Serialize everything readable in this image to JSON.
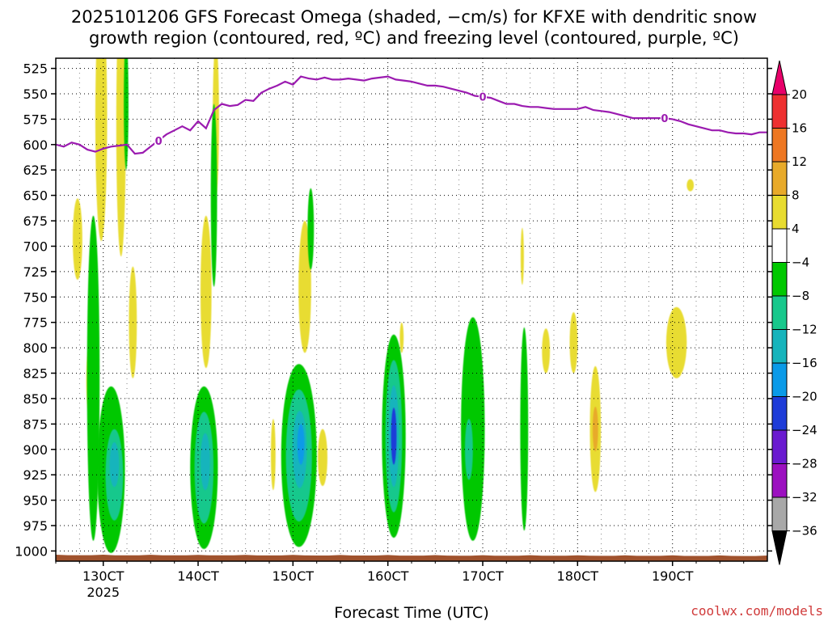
{
  "chart_data": {
    "type": "heatmap",
    "title_line1": "2025101206 GFS Forecast Omega (shaded, −cm/s) for KFXE with dendritic snow",
    "title_line2": "growth region (contoured, red, ºC) and freezing level (contoured, purple, ºC)",
    "xlabel": "Forecast Time (UTC)",
    "credit": "coolwx.com/models",
    "x_range_hours": [
      0,
      180
    ],
    "x_ticks": [
      {
        "hour": 12,
        "label": "130CT",
        "sub": "2025"
      },
      {
        "hour": 36,
        "label": "140CT",
        "sub": ""
      },
      {
        "hour": 60,
        "label": "150CT",
        "sub": ""
      },
      {
        "hour": 84,
        "label": "160CT",
        "sub": ""
      },
      {
        "hour": 108,
        "label": "170CT",
        "sub": ""
      },
      {
        "hour": 132,
        "label": "180CT",
        "sub": ""
      },
      {
        "hour": 156,
        "label": "190CT",
        "sub": ""
      }
    ],
    "y_range_hpa": [
      515,
      1010
    ],
    "y_ticks": [
      525,
      550,
      575,
      600,
      625,
      650,
      675,
      700,
      725,
      750,
      775,
      800,
      825,
      850,
      875,
      900,
      925,
      950,
      975,
      1000
    ],
    "colorbar": {
      "labels": [
        "20",
        "16",
        "12",
        "8",
        "4",
        "−4",
        "−8",
        "−12",
        "−16",
        "−20",
        "−24",
        "−28",
        "−32",
        "−36"
      ],
      "colors": [
        "#e8006a",
        "#ee3030",
        "#ee7722",
        "#e8aa2a",
        "#e8dc30",
        "#ffffff",
        "#00c800",
        "#18c88c",
        "#16b4bc",
        "#0a9ae8",
        "#1e3cd8",
        "#6a1ad0",
        "#9c10c0",
        "#a8a8a8",
        "#000000"
      ]
    },
    "freezing_level": {
      "label": "0",
      "color": "#9b1bb0",
      "points": [
        [
          0,
          600
        ],
        [
          2,
          602
        ],
        [
          4,
          598
        ],
        [
          6,
          600
        ],
        [
          8,
          605
        ],
        [
          10,
          607
        ],
        [
          12,
          604
        ],
        [
          14,
          602
        ],
        [
          16,
          601
        ],
        [
          18,
          600
        ],
        [
          20,
          609
        ],
        [
          22,
          608
        ],
        [
          24,
          602
        ],
        [
          26,
          596
        ],
        [
          28,
          590
        ],
        [
          30,
          586
        ],
        [
          32,
          582
        ],
        [
          34,
          586
        ],
        [
          36,
          577
        ],
        [
          38,
          584
        ],
        [
          40,
          566
        ],
        [
          42,
          560
        ],
        [
          44,
          562
        ],
        [
          46,
          561
        ],
        [
          48,
          556
        ],
        [
          50,
          557
        ],
        [
          52,
          549
        ],
        [
          54,
          545
        ],
        [
          56,
          542
        ],
        [
          58,
          538
        ],
        [
          60,
          541
        ],
        [
          62,
          533
        ],
        [
          64,
          535
        ],
        [
          66,
          536
        ],
        [
          68,
          534
        ],
        [
          70,
          536
        ],
        [
          72,
          536
        ],
        [
          74,
          535
        ],
        [
          76,
          536
        ],
        [
          78,
          537
        ],
        [
          80,
          535
        ],
        [
          82,
          534
        ],
        [
          84,
          533
        ],
        [
          86,
          536
        ],
        [
          88,
          537
        ],
        [
          90,
          538
        ],
        [
          92,
          540
        ],
        [
          94,
          542
        ],
        [
          96,
          542
        ],
        [
          98,
          543
        ],
        [
          100,
          545
        ],
        [
          102,
          547
        ],
        [
          104,
          549
        ],
        [
          106,
          552
        ],
        [
          108,
          553
        ],
        [
          110,
          554
        ],
        [
          112,
          557
        ],
        [
          114,
          560
        ],
        [
          116,
          560
        ],
        [
          118,
          562
        ],
        [
          120,
          563
        ],
        [
          122,
          563
        ],
        [
          124,
          564
        ],
        [
          126,
          565
        ],
        [
          128,
          565
        ],
        [
          130,
          565
        ],
        [
          132,
          565
        ],
        [
          134,
          563
        ],
        [
          136,
          566
        ],
        [
          138,
          567
        ],
        [
          140,
          568
        ],
        [
          142,
          570
        ],
        [
          144,
          572
        ],
        [
          146,
          574
        ],
        [
          148,
          574
        ],
        [
          150,
          574
        ],
        [
          152,
          574
        ],
        [
          154,
          574
        ],
        [
          156,
          575
        ],
        [
          158,
          577
        ],
        [
          160,
          580
        ],
        [
          162,
          582
        ],
        [
          164,
          584
        ],
        [
          166,
          586
        ],
        [
          168,
          586
        ],
        [
          170,
          588
        ],
        [
          172,
          589
        ],
        [
          174,
          589
        ],
        [
          176,
          590
        ],
        [
          178,
          588
        ],
        [
          180,
          588
        ]
      ],
      "label_hours": [
        26,
        108,
        154
      ]
    },
    "omega_blobs": [
      {
        "level": 4,
        "hour": 5.5,
        "p": 693,
        "dx": 1.2,
        "dp": 40
      },
      {
        "level": 4,
        "hour": 11.5,
        "p": 575,
        "dx": 1.5,
        "dp": 120
      },
      {
        "level": 4,
        "hour": 16.5,
        "p": 580,
        "dx": 1.2,
        "dp": 130
      },
      {
        "level": 4,
        "hour": 8.5,
        "p": 832,
        "dx": 0.8,
        "dp": 32
      },
      {
        "level": 4,
        "hour": 19.5,
        "p": 775,
        "dx": 1.0,
        "dp": 55
      },
      {
        "level": -4,
        "hour": 9.5,
        "p": 830,
        "dx": 1.6,
        "dp": 160
      },
      {
        "level": -4,
        "hour": 14.0,
        "p": 920,
        "dx": 3.5,
        "dp": 82
      },
      {
        "level": -4,
        "hour": 17.8,
        "p": 560,
        "dx": 0.6,
        "dp": 65
      },
      {
        "level": -8,
        "hour": 14.8,
        "p": 925,
        "dx": 2.2,
        "dp": 45
      },
      {
        "level": -12,
        "hour": 14.8,
        "p": 915,
        "dx": 1.2,
        "dp": 22
      },
      {
        "level": 4,
        "hour": 40.5,
        "p": 575,
        "dx": 0.8,
        "dp": 75
      },
      {
        "level": 4,
        "hour": 38.0,
        "p": 745,
        "dx": 1.4,
        "dp": 75
      },
      {
        "level": -4,
        "hour": 40.0,
        "p": 650,
        "dx": 0.8,
        "dp": 90
      },
      {
        "level": -4,
        "hour": 37.5,
        "p": 918,
        "dx": 3.5,
        "dp": 80
      },
      {
        "level": -8,
        "hour": 37.5,
        "p": 918,
        "dx": 2.4,
        "dp": 55
      },
      {
        "level": -12,
        "hour": 37.8,
        "p": 912,
        "dx": 1.2,
        "dp": 28
      },
      {
        "level": 4,
        "hour": 63.0,
        "p": 740,
        "dx": 1.6,
        "dp": 65
      },
      {
        "level": -4,
        "hour": 64.5,
        "p": 683,
        "dx": 0.8,
        "dp": 40
      },
      {
        "level": -4,
        "hour": 61.5,
        "p": 906,
        "dx": 4.5,
        "dp": 90
      },
      {
        "level": -8,
        "hour": 61.5,
        "p": 906,
        "dx": 3.3,
        "dp": 65
      },
      {
        "level": -12,
        "hour": 61.7,
        "p": 900,
        "dx": 1.8,
        "dp": 38
      },
      {
        "level": -16,
        "hour": 62.0,
        "p": 895,
        "dx": 0.9,
        "dp": 20
      },
      {
        "level": 4,
        "hour": 67.5,
        "p": 908,
        "dx": 1.2,
        "dp": 28
      },
      {
        "level": 4,
        "hour": 55.0,
        "p": 905,
        "dx": 0.6,
        "dp": 35
      },
      {
        "level": 4,
        "hour": 87.5,
        "p": 790,
        "dx": 0.5,
        "dp": 15
      },
      {
        "level": -4,
        "hour": 85.5,
        "p": 887,
        "dx": 3.0,
        "dp": 100
      },
      {
        "level": -8,
        "hour": 85.5,
        "p": 887,
        "dx": 2.1,
        "dp": 75
      },
      {
        "level": -12,
        "hour": 85.5,
        "p": 887,
        "dx": 1.3,
        "dp": 50
      },
      {
        "level": -20,
        "hour": 85.5,
        "p": 887,
        "dx": 0.7,
        "dp": 28
      },
      {
        "level": -4,
        "hour": 105.5,
        "p": 880,
        "dx": 3.0,
        "dp": 110
      },
      {
        "level": -8,
        "hour": 104.5,
        "p": 900,
        "dx": 1.0,
        "dp": 30
      },
      {
        "level": -4,
        "hour": 118.5,
        "p": 880,
        "dx": 1.0,
        "dp": 100
      },
      {
        "level": 4,
        "hour": 118.0,
        "p": 710,
        "dx": 0.4,
        "dp": 28
      },
      {
        "level": 4,
        "hour": 124.0,
        "p": 803,
        "dx": 1.0,
        "dp": 22
      },
      {
        "level": 4,
        "hour": 131.0,
        "p": 795,
        "dx": 1.0,
        "dp": 30
      },
      {
        "level": 4,
        "hour": 136.5,
        "p": 880,
        "dx": 1.4,
        "dp": 62
      },
      {
        "level": 8,
        "hour": 136.5,
        "p": 880,
        "dx": 0.7,
        "dp": 22
      },
      {
        "level": 4,
        "hour": 157.0,
        "p": 795,
        "dx": 2.6,
        "dp": 35
      },
      {
        "level": 4,
        "hour": 160.5,
        "p": 640,
        "dx": 0.9,
        "dp": 6
      }
    ],
    "surface_fill": "#a0522d"
  }
}
